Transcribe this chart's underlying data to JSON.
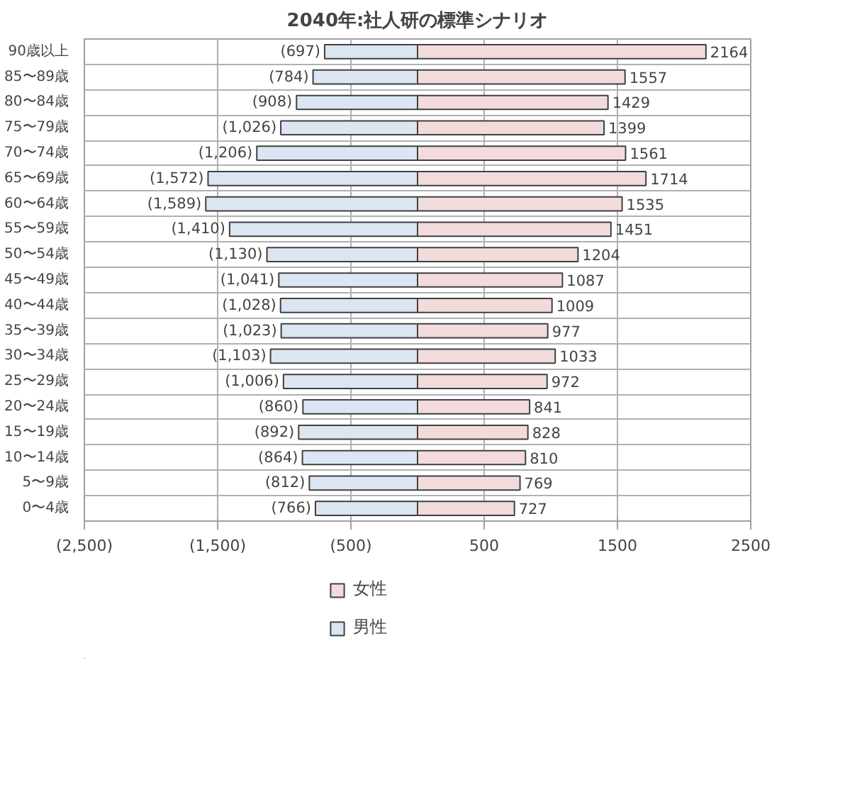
{
  "chart_data": {
    "type": "bar",
    "orientation": "horizontal",
    "title": "2040年:社人研の標準シナリオ",
    "categories": [
      "90歳以上",
      "85〜89歳",
      "80〜84歳",
      "75〜79歳",
      "70〜74歳",
      "65〜69歳",
      "60〜64歳",
      "55〜59歳",
      "50〜54歳",
      "45〜49歳",
      "40〜44歳",
      "35〜39歳",
      "30〜34歳",
      "25〜29歳",
      "20〜24歳",
      "15〜19歳",
      "10〜14歳",
      "5〜9歳",
      "0〜4歳"
    ],
    "series": [
      {
        "name": "女性",
        "color": "#f2dcdb",
        "values": [
          2164,
          1557,
          1429,
          1399,
          1561,
          1714,
          1535,
          1451,
          1204,
          1087,
          1009,
          977,
          1033,
          972,
          841,
          828,
          810,
          769,
          727
        ],
        "value_labels": [
          "2164",
          "1557",
          "1429",
          "1399",
          "1561",
          "1714",
          "1535",
          "1451",
          "1204",
          "1087",
          "1009",
          "977",
          "1033",
          "972",
          "841",
          "828",
          "810",
          "769",
          "727"
        ]
      },
      {
        "name": "男性",
        "color": "#dce6f2",
        "values": [
          -697,
          -784,
          -908,
          -1026,
          -1206,
          -1572,
          -1589,
          -1410,
          -1130,
          -1041,
          -1028,
          -1023,
          -1103,
          -1006,
          -860,
          -892,
          -864,
          -812,
          -766
        ],
        "value_labels": [
          "(697)",
          "(784)",
          "(908)",
          "(1,026)",
          "(1,206)",
          "(1,572)",
          "(1,589)",
          "(1,410)",
          "(1,130)",
          "(1,041)",
          "(1,028)",
          "(1,023)",
          "(1,103)",
          "(1,006)",
          "(860)",
          "(892)",
          "(864)",
          "(812)",
          "(766)"
        ]
      }
    ],
    "xlim": [
      -2500,
      2500
    ],
    "xticks": [
      {
        "value": -2500,
        "label": "(2,500)"
      },
      {
        "value": -1500,
        "label": "(1,500)"
      },
      {
        "value": -500,
        "label": "(500)"
      },
      500,
      1500,
      2500
    ],
    "grid": true,
    "legend": "bottom",
    "stacked": true
  }
}
